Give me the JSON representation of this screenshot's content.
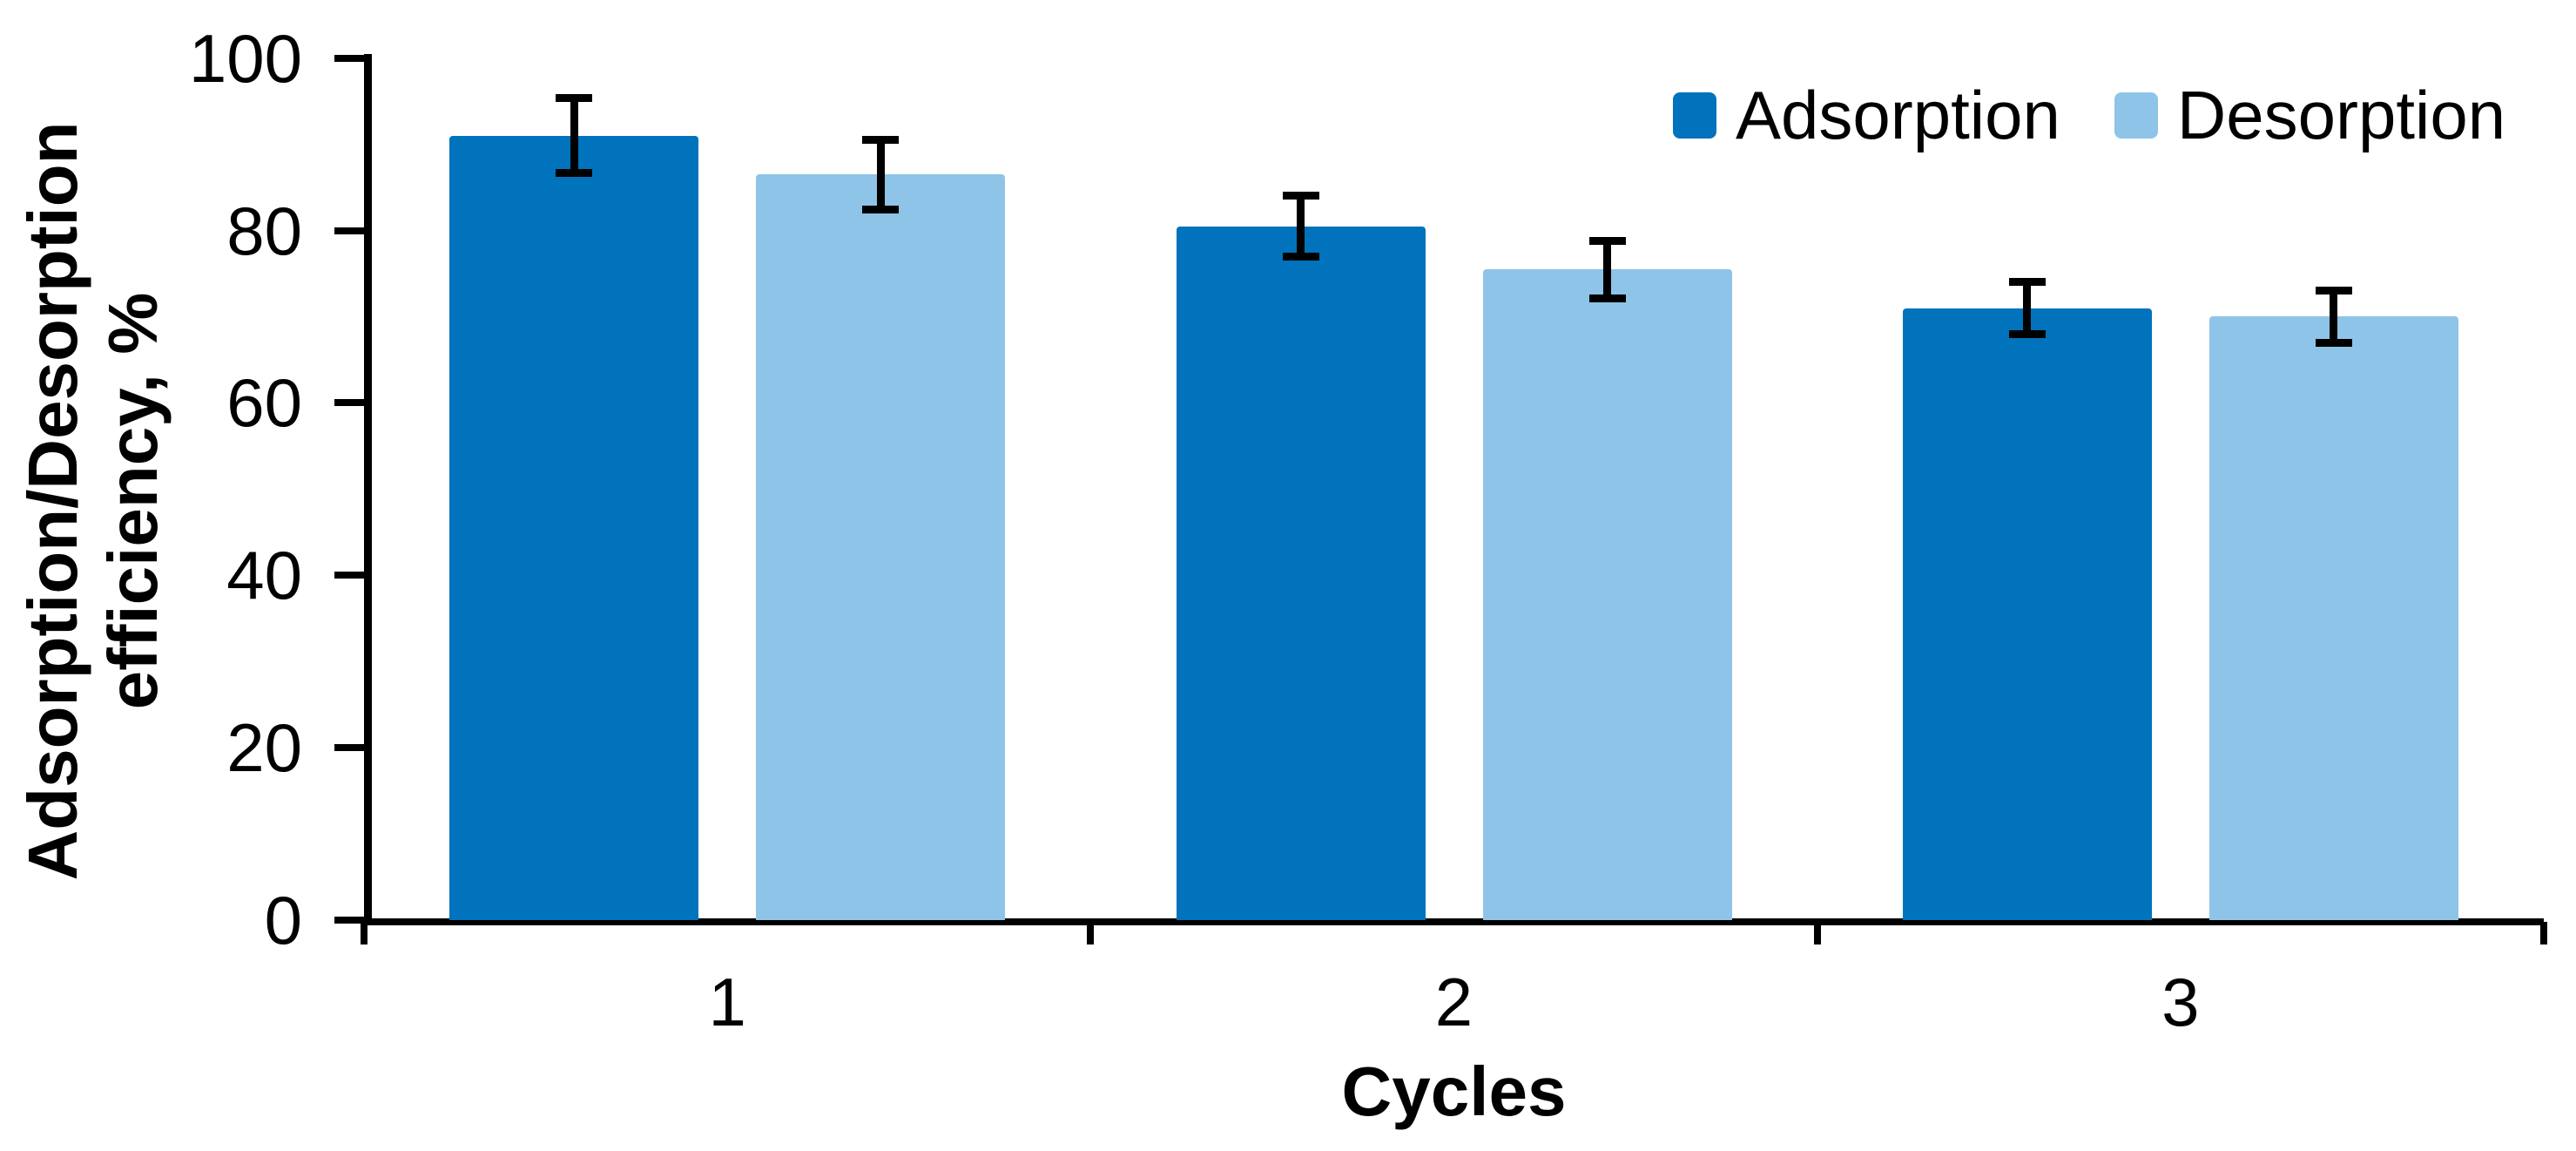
{
  "chart_data": {
    "type": "bar",
    "title": "",
    "xlabel": "Cycles",
    "ylabel": "Adsorption/Desorption\nefficiency, %",
    "categories": [
      "1",
      "2",
      "3"
    ],
    "series": [
      {
        "name": "Adsorption",
        "color": "#0073BC",
        "values": [
          91,
          80.5,
          71
        ],
        "error_bars": [
          4.8,
          4.0,
          3.5
        ]
      },
      {
        "name": "Desorption",
        "color": "#8EC4E8",
        "values": [
          86.5,
          75.5,
          70
        ],
        "error_bars": [
          4.5,
          3.8,
          3.5
        ]
      }
    ],
    "ylim": [
      0,
      100
    ],
    "yticks": [
      0,
      20,
      40,
      60,
      80,
      100
    ],
    "grid": false,
    "legend_position": "top-right",
    "axis_color": "#000000",
    "error_bar_color": "#000000",
    "background_color": "#FFFFFF"
  }
}
